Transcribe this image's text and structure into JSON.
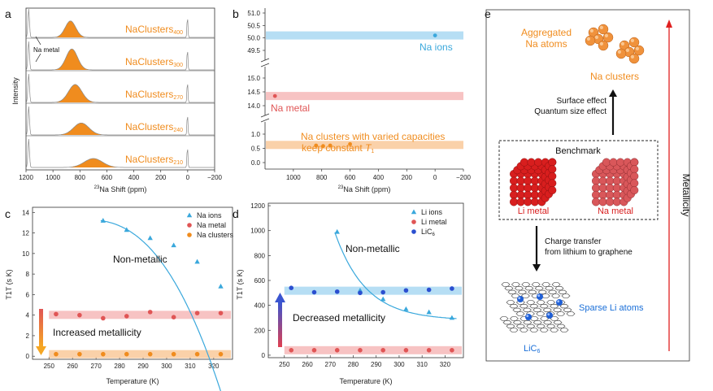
{
  "panel_labels": {
    "a": "a",
    "b": "b",
    "c": "c",
    "d": "d",
    "e": "e"
  },
  "colors": {
    "orange": "#f08c1e",
    "blue": "#3aa8dc",
    "red": "#e05555",
    "darkblue": "#2b4fd0",
    "pinkband": "#f6b9b9",
    "blueband": "#a9d8f2",
    "orangeband": "#f9c99a"
  },
  "chart_data": [
    {
      "id": "a",
      "type": "line",
      "title": "",
      "ylabel": "Intensity",
      "xlabel": "23Na Shift (ppm)",
      "xlabel_sup": "23",
      "xlabel_main": "Na Shift (ppm)",
      "xlim": [
        1200,
        -200
      ],
      "xticks": [
        1200,
        1000,
        800,
        600,
        400,
        200,
        0,
        -200
      ],
      "xtick_labels": [
        "1200",
        "1000",
        "800",
        "600",
        "400",
        "200",
        "0",
        "−200"
      ],
      "annotation": "Na metal",
      "series": [
        {
          "name": "NaClusters400",
          "label_main": "NaClusters",
          "label_sub": "400",
          "peak_center": 870,
          "peak_height": 0.55,
          "peak_width": 55
        },
        {
          "name": "NaClusters300",
          "label_main": "NaClusters",
          "label_sub": "300",
          "peak_center": 860,
          "peak_height": 0.7,
          "peak_width": 60
        },
        {
          "name": "NaClusters270",
          "label_main": "NaClusters",
          "label_sub": "270",
          "peak_center": 835,
          "peak_height": 0.6,
          "peak_width": 70
        },
        {
          "name": "NaClusters240",
          "label_main": "NaClusters",
          "label_sub": "240",
          "peak_center": 790,
          "peak_height": 0.4,
          "peak_width": 80
        },
        {
          "name": "NaClusters210",
          "label_main": "NaClusters",
          "label_sub": "210",
          "peak_center": 700,
          "peak_height": 0.3,
          "peak_width": 95
        }
      ]
    },
    {
      "id": "b",
      "type": "scatter",
      "xlabel": "23Na Shift (ppm)",
      "xlabel_sup": "23",
      "xlabel_main": "Na Shift (ppm)",
      "xlim": [
        1200,
        -200
      ],
      "xticks": [
        1000,
        800,
        600,
        400,
        200,
        0,
        -200
      ],
      "xtick_labels": [
        "1000",
        "800",
        "600",
        "400",
        "200",
        "0",
        "−200"
      ],
      "y_segments": [
        {
          "ylim": [
            49.5,
            51.0
          ],
          "ticks": [
            "51.0",
            "50.5",
            "50.0",
            "49.5"
          ],
          "tick_vals": [
            51.0,
            50.5,
            50.0,
            49.5
          ]
        },
        {
          "ylim": [
            14.0,
            15.0
          ],
          "ticks": [
            "15.0",
            "14.5",
            "14.0"
          ],
          "tick_vals": [
            15.0,
            14.5,
            14.0
          ]
        },
        {
          "ylim": [
            0,
            1.2
          ],
          "ticks": [
            "1.0",
            "0.5",
            "0.0"
          ],
          "tick_vals": [
            1.0,
            0.5,
            0.0
          ]
        }
      ],
      "series": [
        {
          "name": "Na ions",
          "points": [
            [
              0,
              50.1
            ]
          ],
          "band": 50.1
        },
        {
          "name": "Na metal",
          "points": [
            [
              1130,
              14.35
            ]
          ],
          "band": 14.35
        },
        {
          "name": "Na clusters",
          "points": [
            [
              840,
              0.6
            ],
            [
              790,
              0.58
            ],
            [
              740,
              0.6
            ],
            [
              600,
              0.65
            ]
          ],
          "band": 0.62
        }
      ],
      "annotations": {
        "na_ions": "Na ions",
        "na_metal": "Na metal",
        "clusters_line1": "Na clusters with varied capacities",
        "clusters_line2_main": "keep constant ",
        "clusters_line2_t": "T",
        "clusters_line2_sub": "1"
      }
    },
    {
      "id": "c",
      "type": "scatter",
      "xlabel": "Temperature (K)",
      "ylabel": "T1T (s K)",
      "xlim": [
        243,
        328
      ],
      "ylim": [
        -0.3,
        14.5
      ],
      "xticks": [
        250,
        260,
        270,
        280,
        290,
        300,
        310,
        320
      ],
      "yticks": [
        0,
        2,
        4,
        6,
        8,
        10,
        12,
        14
      ],
      "series": [
        {
          "name": "Na ions",
          "marker": "triangle",
          "x": [
            273,
            283,
            293,
            303,
            313,
            323
          ],
          "y": [
            13.2,
            12.3,
            11.5,
            10.8,
            9.2,
            6.8
          ]
        },
        {
          "name": "Na metal",
          "marker": "circle",
          "x": [
            253,
            263,
            273,
            283,
            293,
            303,
            313,
            323
          ],
          "y": [
            4.1,
            4.0,
            3.7,
            3.9,
            4.3,
            3.8,
            4.2,
            4.2
          ]
        },
        {
          "name": "Na clusters",
          "marker": "circle",
          "x": [
            253,
            263,
            273,
            283,
            293,
            303,
            313,
            323
          ],
          "y": [
            0.2,
            0.2,
            0.2,
            0.2,
            0.2,
            0.2,
            0.2,
            0.2
          ]
        }
      ],
      "annotations": {
        "nonmetallic": "Non-metallic",
        "increased": "Increased metallicity"
      }
    },
    {
      "id": "d",
      "type": "scatter",
      "xlabel": "Temperature (K)",
      "ylabel": "T1T (s K)",
      "xlim": [
        243,
        328
      ],
      "ylim": [
        -20,
        1220
      ],
      "xticks": [
        250,
        260,
        270,
        280,
        290,
        300,
        310,
        320
      ],
      "yticks": [
        0,
        200,
        400,
        600,
        800,
        1000,
        1200
      ],
      "series": [
        {
          "name": "Li ions",
          "marker": "triangle",
          "x": [
            273,
            283,
            293,
            303,
            313,
            323
          ],
          "y": [
            990,
            520,
            450,
            370,
            345,
            300
          ]
        },
        {
          "name": "Li metal",
          "marker": "circle",
          "x": [
            253,
            263,
            273,
            283,
            293,
            303,
            313,
            323
          ],
          "y": [
            40,
            40,
            40,
            40,
            40,
            40,
            40,
            40
          ]
        },
        {
          "name": "LiC6",
          "marker": "circle",
          "x": [
            253,
            263,
            273,
            283,
            293,
            303,
            313,
            323
          ],
          "y": [
            540,
            505,
            510,
            500,
            505,
            520,
            525,
            535
          ]
        }
      ],
      "legend_licsub": "6",
      "legend_lic": "LiC",
      "annotations": {
        "nonmetallic": "Non-metallic",
        "decreased": "Decreased metallicity"
      }
    }
  ],
  "panel_e": {
    "aggregated_line1": "Aggregated",
    "aggregated_line2": "Na atoms",
    "na_clusters": "Na clusters",
    "surface_effect": "Surface effect",
    "quantum_size": "Quantum size effect",
    "benchmark": "Benchmark",
    "li_metal": "Li metal",
    "na_metal": "Na metal",
    "charge_transfer": "Charge transfer",
    "from_lithium": "from lithium to graphene",
    "sparse_li": "Sparse Li atoms",
    "lic6_main": "LiC",
    "lic6_sub": "6",
    "metallicity": "Metallicity"
  }
}
